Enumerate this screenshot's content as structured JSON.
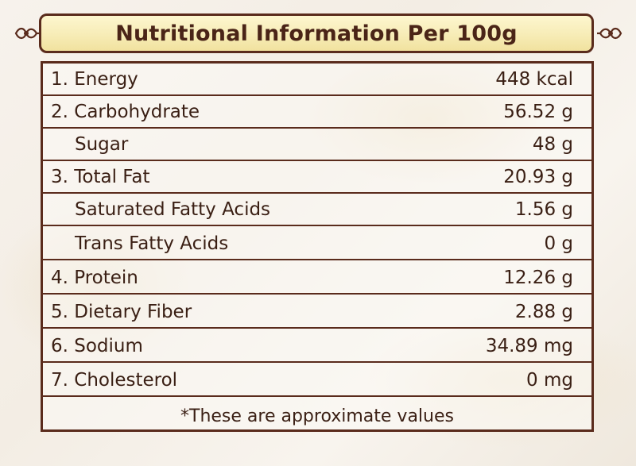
{
  "header": {
    "title": "Nutritional Information Per 100g"
  },
  "rows": [
    {
      "label": "1. Energy",
      "value": "448 kcal"
    },
    {
      "label": "2. Carbohydrate",
      "value": "56.52 g"
    },
    {
      "label": "Sugar",
      "value": "48 g"
    },
    {
      "label": "3. Total Fat",
      "value": "20.93 g"
    },
    {
      "label": "Saturated Fatty Acids",
      "value": "1.56 g"
    },
    {
      "label": "Trans Fatty Acids",
      "value": "0 g"
    },
    {
      "label": "4. Protein",
      "value": "12.26 g"
    },
    {
      "label": "5. Dietary Fiber",
      "value": "2.88 g"
    },
    {
      "label": "6. Sodium",
      "value": "34.89 mg"
    },
    {
      "label": "7. Cholesterol",
      "value": "0 mg"
    }
  ],
  "footnote": "*These are approximate values",
  "colors": {
    "border": "#5a2b1c",
    "banner_fill": "#f7ecb6",
    "text": "#3a1f14"
  }
}
